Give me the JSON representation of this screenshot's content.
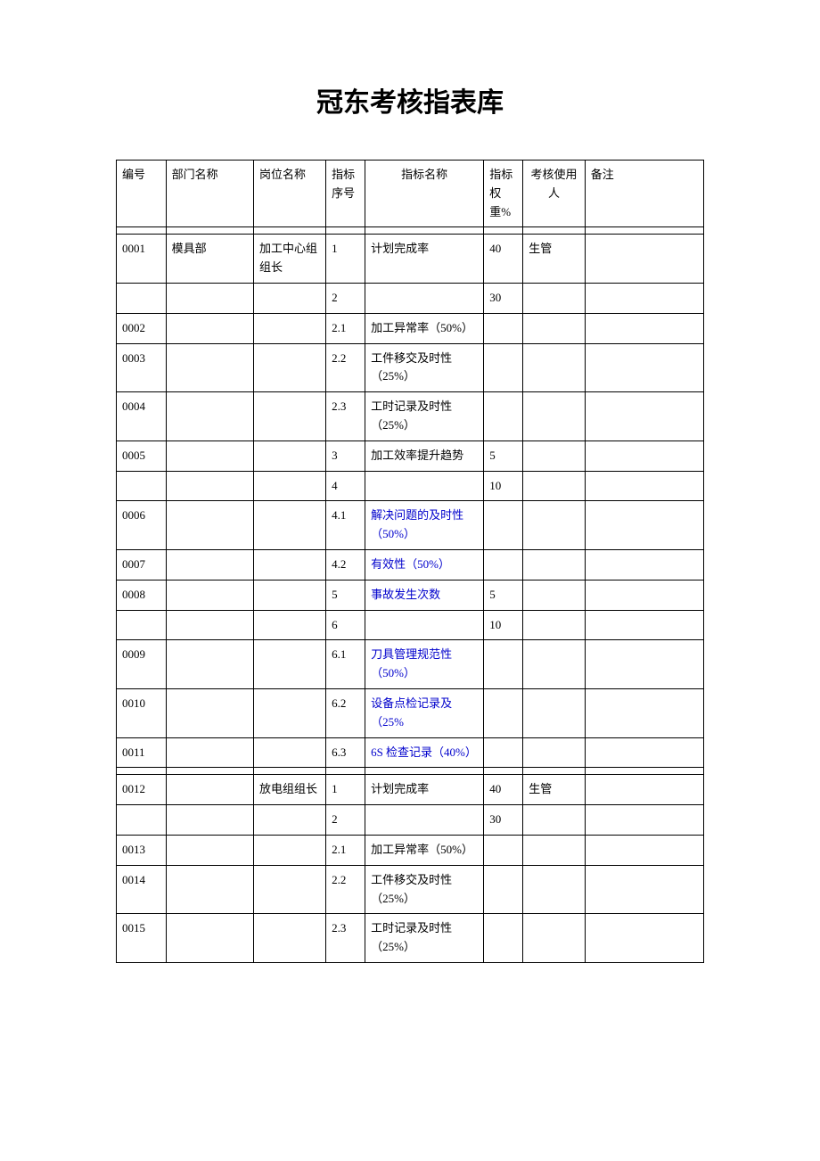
{
  "title": "冠东考核指表库",
  "headers": {
    "id": "编号",
    "dept": "部门名称",
    "pos": "岗位名称",
    "seq": "指标序号",
    "name": "指标名称",
    "weight": "指标权重%",
    "user": "考核使用人",
    "note": "备注"
  },
  "rows": [
    {
      "type": "spacer"
    },
    {
      "id": "0001",
      "dept": "模具部",
      "pos": "加工中心组组长",
      "seq": "1",
      "name": "计划完成率",
      "weight": "40",
      "user": "生管",
      "note": ""
    },
    {
      "id": "",
      "dept": "",
      "pos": "",
      "seq": "2",
      "name": "",
      "weight": "30",
      "user": "",
      "note": ""
    },
    {
      "id": "0002",
      "dept": "",
      "pos": "",
      "seq": "2.1",
      "name": "加工异常率（50%）",
      "weight": "",
      "user": "",
      "note": ""
    },
    {
      "id": "0003",
      "dept": "",
      "pos": "",
      "seq": "2.2",
      "name": "工件移交及时性（25%）",
      "weight": "",
      "user": "",
      "note": ""
    },
    {
      "id": "0004",
      "dept": "",
      "pos": "",
      "seq": "2.3",
      "name": "工时记录及时性（25%）",
      "weight": "",
      "user": "",
      "note": ""
    },
    {
      "id": "0005",
      "dept": "",
      "pos": "",
      "seq": "3",
      "name": "加工效率提升趋势",
      "weight": "5",
      "user": "",
      "note": ""
    },
    {
      "id": "",
      "dept": "",
      "pos": "",
      "seq": "4",
      "name": "",
      "weight": "10",
      "user": "",
      "note": ""
    },
    {
      "id": "0006",
      "dept": "",
      "pos": "",
      "seq": "4.1",
      "name": "解决问题的及时性（50%）",
      "nameBlue": true,
      "weight": "",
      "user": "",
      "note": ""
    },
    {
      "id": "0007",
      "dept": "",
      "pos": "",
      "seq": "4.2",
      "name": "有效性（50%）",
      "nameBlue": true,
      "weight": "",
      "user": "",
      "note": ""
    },
    {
      "id": "0008",
      "dept": "",
      "pos": "",
      "seq": "5",
      "name": "事故发生次数",
      "nameBlue": true,
      "weight": "5",
      "user": "",
      "note": ""
    },
    {
      "id": "",
      "dept": "",
      "pos": "",
      "seq": "6",
      "name": "",
      "weight": "10",
      "user": "",
      "note": ""
    },
    {
      "id": "0009",
      "dept": "",
      "pos": "",
      "seq": "6.1",
      "name": "刀具管理规范性（50%）",
      "nameBlue": true,
      "weight": "",
      "user": "",
      "note": ""
    },
    {
      "id": "0010",
      "dept": "",
      "pos": "",
      "seq": "6.2",
      "name": "设备点检记录及（25%",
      "nameBlue": true,
      "weight": "",
      "user": "",
      "note": ""
    },
    {
      "id": "0011",
      "dept": "",
      "pos": "",
      "seq": "6.3",
      "name": "6S 检查记录（40%）",
      "nameBlue": true,
      "weight": "",
      "user": "",
      "note": ""
    },
    {
      "type": "spacer"
    },
    {
      "id": "0012",
      "dept": "",
      "pos": "放电组组长",
      "seq": "1",
      "name": "计划完成率",
      "weight": "40",
      "user": "生管",
      "note": ""
    },
    {
      "id": "",
      "dept": "",
      "pos": "",
      "seq": "2",
      "name": "",
      "weight": "30",
      "user": "",
      "note": ""
    },
    {
      "id": "0013",
      "dept": "",
      "pos": "",
      "seq": "2.1",
      "name": "加工异常率（50%）",
      "weight": "",
      "user": "",
      "note": ""
    },
    {
      "id": "0014",
      "dept": "",
      "pos": "",
      "seq": "2.2",
      "name": "工件移交及时性（25%）",
      "weight": "",
      "user": "",
      "note": ""
    },
    {
      "id": "0015",
      "dept": "",
      "pos": "",
      "seq": "2.3",
      "name": "工时记录及时性（25%）",
      "weight": "",
      "user": "",
      "note": ""
    }
  ],
  "styling": {
    "text_color": "#000000",
    "blue_color": "#0000cc",
    "background": "#ffffff",
    "border_color": "#000000",
    "body_font_size": 13,
    "title_font_size": 30
  }
}
